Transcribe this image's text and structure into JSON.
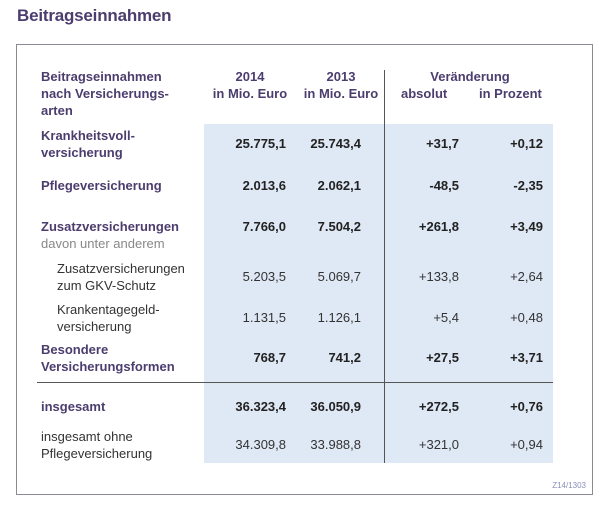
{
  "title": "Beitragseinnahmen",
  "header": {
    "col0": [
      "Beitragseinnahmen",
      "nach Versicherungs-",
      "arten"
    ],
    "y2014": "2014",
    "y2013": "2013",
    "unit2014": "in Mio. Euro",
    "unit2013": "in Mio. Euro",
    "change": "Veränderung",
    "absolut": "absolut",
    "prozent": "in Prozent"
  },
  "rows": [
    {
      "label": [
        "Krankheitsvoll-",
        "versicherung"
      ],
      "v2014": "25.775,1",
      "v2013": "25.743,4",
      "abs": "+31,7",
      "pct": "+0,12"
    },
    {
      "label": [
        "Pflegeversicherung"
      ],
      "v2014": "2.013,6",
      "v2013": "2.062,1",
      "abs": "-48,5",
      "pct": "-2,35"
    },
    {
      "label": [
        "Zusatzversicherungen"
      ],
      "sub": "davon unter anderem",
      "v2014": "7.766,0",
      "v2013": "7.504,2",
      "abs": "+261,8",
      "pct": "+3,49"
    },
    {
      "label": [
        "Zusatzversicherungen",
        "zum GKV-Schutz"
      ],
      "v2014": "5.203,5",
      "v2013": "5.069,7",
      "abs": "+133,8",
      "pct": "+2,64"
    },
    {
      "label": [
        "Krankentagegeld-",
        "versicherung"
      ],
      "v2014": "1.131,5",
      "v2013": "1.126,1",
      "abs": "+5,4",
      "pct": "+0,48"
    },
    {
      "label": [
        "Besondere",
        "Versicherungsformen"
      ],
      "v2014": "768,7",
      "v2013": "741,2",
      "abs": "+27,5",
      "pct": "+3,71"
    },
    {
      "label": [
        "insgesamt"
      ],
      "v2014": "36.323,4",
      "v2013": "36.050,9",
      "abs": "+272,5",
      "pct": "+0,76"
    },
    {
      "label": [
        "insgesamt ohne",
        "Pflegeversicherung"
      ],
      "v2014": "34.309,8",
      "v2013": "33.988,8",
      "abs": "+321,0",
      "pct": "+0,94"
    }
  ],
  "code": "Z14/1303"
}
